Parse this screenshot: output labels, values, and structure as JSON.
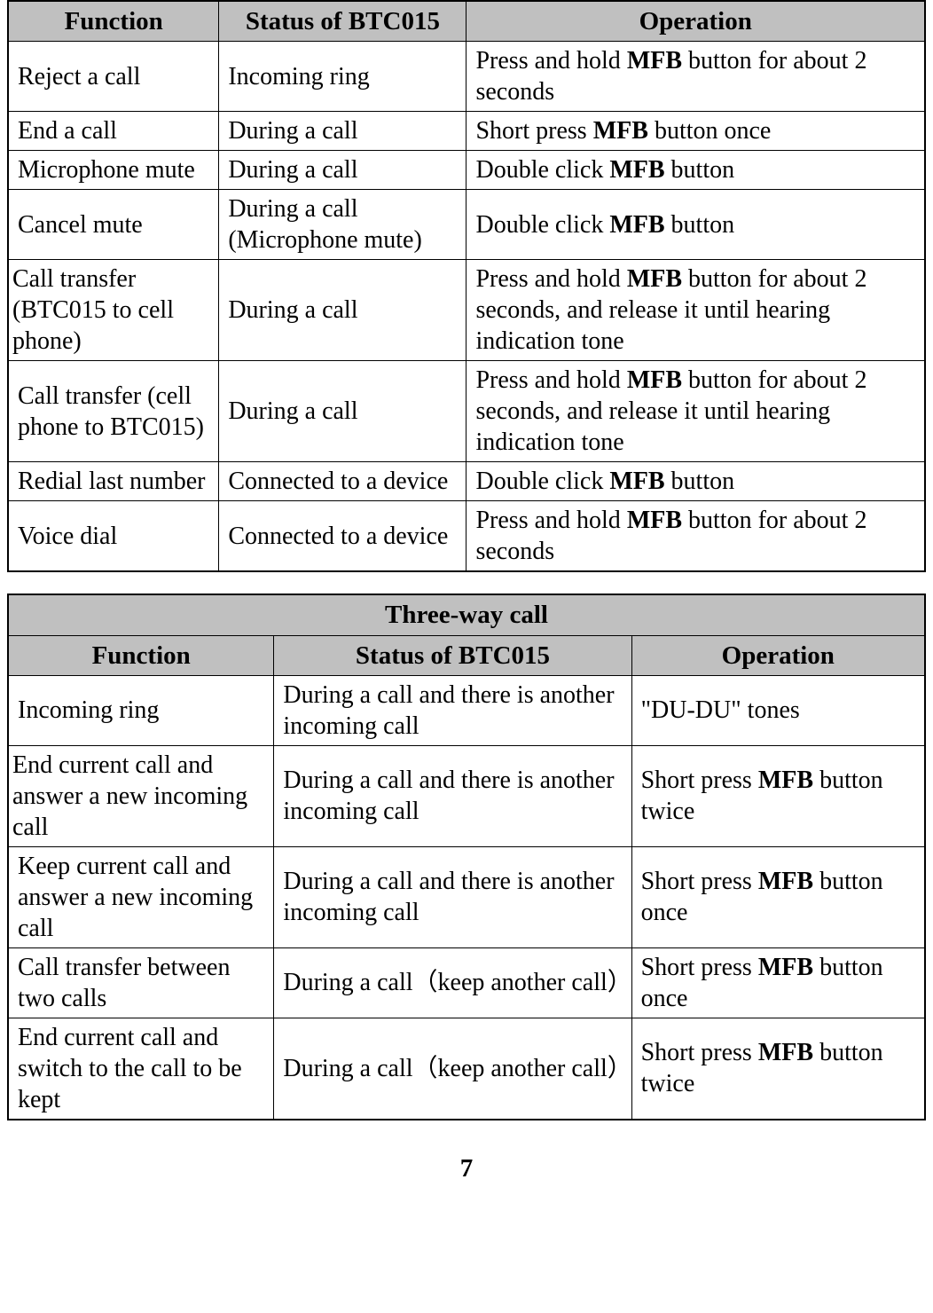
{
  "table1": {
    "headers": [
      "Function",
      "Status of BTC015",
      "Operation"
    ],
    "rows": [
      {
        "function": "Reject a call",
        "status": "Incoming ring",
        "operation_parts": [
          "Press and hold ",
          "MFB",
          " button for about 2 seconds"
        ]
      },
      {
        "function": "End a call",
        "status": "During a call",
        "operation_parts": [
          "Short press ",
          "MFB",
          " button once"
        ]
      },
      {
        "function": "Microphone mute",
        "status": "During a call",
        "operation_parts": [
          "Double click ",
          "MFB",
          " button"
        ]
      },
      {
        "function": "Cancel mute",
        "status": "During a call (Microphone mute)",
        "operation_parts": [
          "Double click ",
          "MFB",
          " button"
        ]
      },
      {
        "function": "Call transfer (BTC015 to cell phone)",
        "status": "During a call",
        "operation_parts": [
          "Press and hold ",
          "MFB",
          " button for about 2 seconds, and release it until hearing indication tone"
        ]
      },
      {
        "function": "Call transfer (cell phone to BTC015)",
        "status": "During a call",
        "operation_parts": [
          "Press and hold ",
          "MFB",
          " button for about 2 seconds, and release it until hearing indication tone"
        ]
      },
      {
        "function": "Redial last number",
        "status": "Connected to a device",
        "operation_parts": [
          "Double click ",
          "MFB",
          " button"
        ]
      },
      {
        "function": "Voice dial",
        "status": "Connected to a device",
        "operation_parts": [
          "Press and hold ",
          "MFB",
          " button for about 2 seconds"
        ]
      }
    ]
  },
  "table2": {
    "title": "Three-way call",
    "headers": [
      "Function",
      "Status of BTC015",
      "Operation"
    ],
    "rows": [
      {
        "function": "Incoming ring",
        "status": "During a call and there is another incoming call",
        "operation_parts": [
          "\"DU-DU\" tones"
        ]
      },
      {
        "function": "End current call and answer a new incoming call",
        "status": "During a call and there is another incoming call",
        "operation_parts": [
          "Short press ",
          "MFB",
          " button twice"
        ]
      },
      {
        "function": "Keep current call and answer a new incoming call",
        "status": "During a call and there is another incoming call",
        "operation_parts": [
          "Short press ",
          "MFB",
          " button once"
        ]
      },
      {
        "function": "Call transfer between two calls",
        "status": "During a call（keep another call）",
        "operation_parts": [
          "Short press ",
          "MFB",
          " button once"
        ]
      },
      {
        "function": "End current call and switch to the call to be kept",
        "status": "During a call（keep another call）",
        "operation_parts": [
          "Short press ",
          "MFB",
          " button twice"
        ]
      }
    ]
  },
  "page_number": "7",
  "colors": {
    "header_bg": "#c0c0c0",
    "border": "#000000",
    "text": "#000000",
    "background": "#ffffff"
  },
  "typography": {
    "font_family": "Times New Roman",
    "body_fontsize": 28,
    "header_fontsize": 29,
    "bold_keyword": "MFB"
  }
}
